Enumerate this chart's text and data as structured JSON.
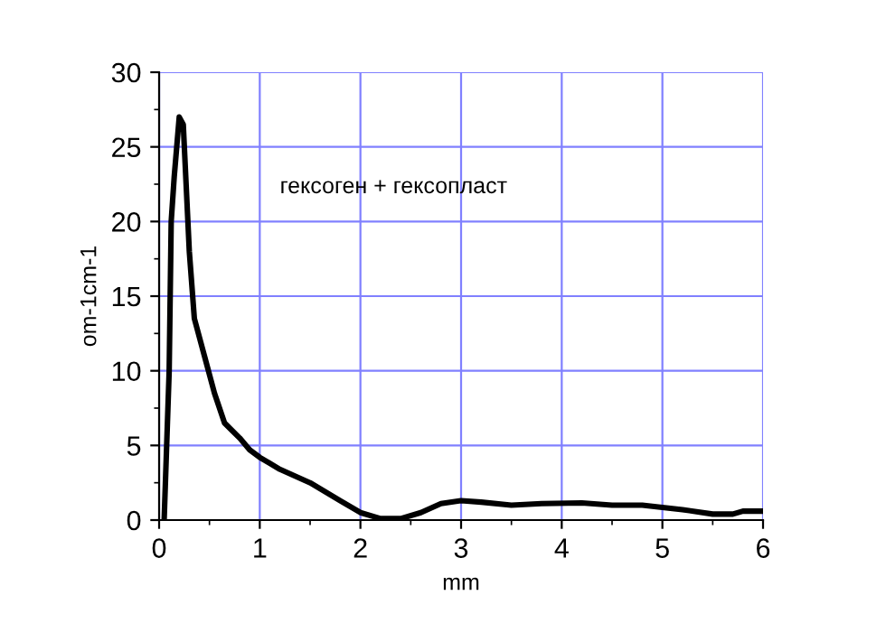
{
  "chart_data": {
    "type": "line",
    "xlabel": "mm",
    "ylabel": "om-1cm-1",
    "annotations": [
      "гексоген + гексопласт"
    ],
    "xlim": [
      0,
      6
    ],
    "ylim": [
      0,
      30
    ],
    "xticks": [
      0,
      1,
      2,
      3,
      4,
      5,
      6
    ],
    "yticks": [
      0,
      5,
      10,
      15,
      20,
      25,
      30
    ],
    "grid": true,
    "marker": "none",
    "line_style": "solid",
    "series": [
      {
        "color": "#000000",
        "x": [
          0.05,
          0.1,
          0.12,
          0.15,
          0.2,
          0.24,
          0.3,
          0.35,
          0.45,
          0.55,
          0.65,
          0.8,
          0.9,
          1.0,
          1.1,
          1.2,
          1.5,
          1.8,
          2.0,
          2.2,
          2.4,
          2.6,
          2.8,
          3.0,
          3.2,
          3.5,
          3.8,
          4.2,
          4.5,
          4.8,
          5.2,
          5.5,
          5.7,
          5.8,
          6.0
        ],
        "values": [
          0,
          10,
          20,
          23,
          27,
          26.5,
          18,
          13.5,
          11,
          8.5,
          6.5,
          5.5,
          4.7,
          4.2,
          3.8,
          3.4,
          2.5,
          1.3,
          0.5,
          0.1,
          0.1,
          0.5,
          1.1,
          1.3,
          1.2,
          1.0,
          1.1,
          1.15,
          1.0,
          1.0,
          0.7,
          0.4,
          0.4,
          0.6,
          0.6
        ]
      }
    ]
  }
}
